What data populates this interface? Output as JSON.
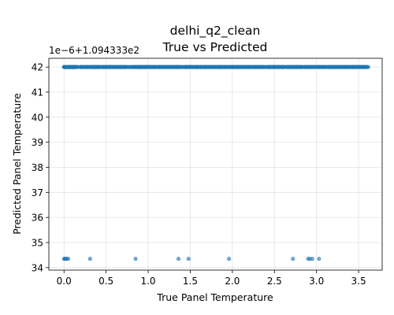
{
  "chart_data": {
    "type": "scatter",
    "title": "delhi_q2_clean",
    "subtitle": "True vs Predicted",
    "xlabel": "True Panel Temperature",
    "ylabel": "Predicted Panel Temperature",
    "y_offset_label": "1e−6+1.094333e2",
    "xlim": [
      -0.18,
      3.78
    ],
    "ylim": [
      33.9,
      42.35
    ],
    "x_ticks": [
      0.0,
      0.5,
      1.0,
      1.5,
      2.0,
      2.5,
      3.0,
      3.5
    ],
    "x_tick_labels": [
      "0.0",
      "0.5",
      "1.0",
      "1.5",
      "2.0",
      "2.5",
      "3.0",
      "3.5"
    ],
    "y_ticks": [
      34,
      35,
      36,
      37,
      38,
      39,
      40,
      41,
      42
    ],
    "y_tick_labels": [
      "34",
      "35",
      "36",
      "37",
      "38",
      "39",
      "40",
      "41",
      "42"
    ],
    "grid": true,
    "color": "#1f77b4",
    "series": [
      {
        "x_range": [
          0.0,
          3.62
        ],
        "y": 42.0,
        "points_low": [
          {
            "x": 0.0,
            "y": 34.35
          },
          {
            "x": 0.01,
            "y": 34.35
          },
          {
            "x": 0.02,
            "y": 34.35
          },
          {
            "x": 0.03,
            "y": 34.35
          },
          {
            "x": 0.05,
            "y": 34.35
          },
          {
            "x": 0.31,
            "y": 34.35
          },
          {
            "x": 0.85,
            "y": 34.35
          },
          {
            "x": 1.36,
            "y": 34.35
          },
          {
            "x": 1.48,
            "y": 34.35
          },
          {
            "x": 1.96,
            "y": 34.35
          },
          {
            "x": 2.72,
            "y": 34.35
          },
          {
            "x": 2.9,
            "y": 34.35
          },
          {
            "x": 2.92,
            "y": 34.35
          },
          {
            "x": 2.95,
            "y": 34.35
          },
          {
            "x": 3.03,
            "y": 34.35
          }
        ]
      }
    ]
  }
}
